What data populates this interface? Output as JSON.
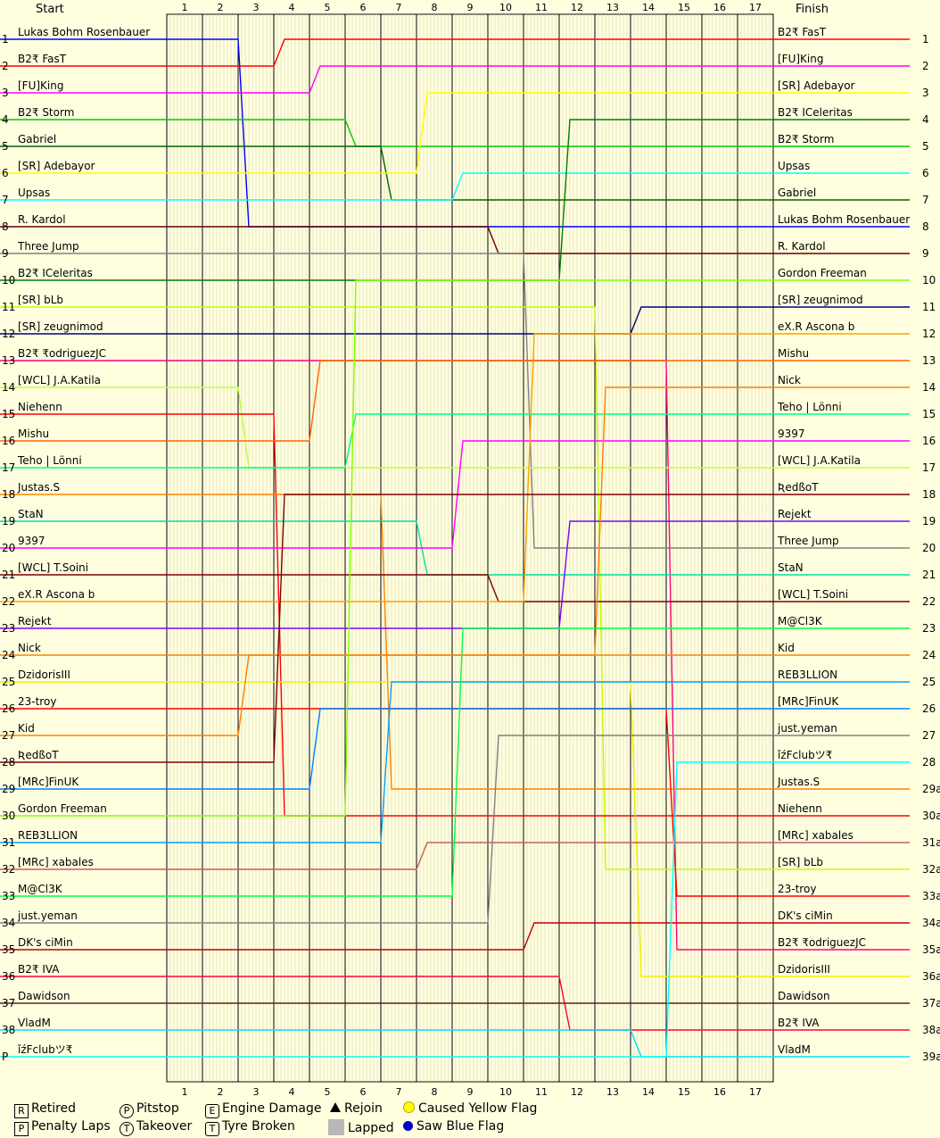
{
  "chart_data": {
    "type": "line",
    "x_label_left": "Start",
    "x_label_right": "Finish",
    "laps": [
      "1",
      "2",
      "3",
      "4",
      "5",
      "6",
      "7",
      "8",
      "9",
      "10",
      "11",
      "12",
      "13",
      "14",
      "15",
      "16",
      "17"
    ],
    "row_labels_left": [
      "1",
      "2",
      "3",
      "4",
      "5",
      "6",
      "7",
      "8",
      "9",
      "10",
      "11",
      "12",
      "13",
      "14",
      "15",
      "16",
      "17",
      "18",
      "19",
      "20",
      "21",
      "22",
      "23",
      "24",
      "25",
      "26",
      "27",
      "28",
      "29",
      "30",
      "31",
      "32",
      "33",
      "34",
      "35",
      "36",
      "37",
      "38",
      "P"
    ],
    "row_labels_right": [
      "1",
      "2",
      "3",
      "4",
      "5",
      "6",
      "7",
      "8",
      "9",
      "10",
      "11",
      "12",
      "13",
      "14",
      "15",
      "16",
      "17",
      "18",
      "19",
      "20",
      "21",
      "22",
      "23",
      "24",
      "25",
      "26",
      "27",
      "28",
      "29a",
      "30a",
      "31a",
      "32a",
      "33a",
      "34a",
      "35a",
      "36a",
      "37a",
      "38a",
      "39a"
    ],
    "start_names": [
      "Lukas Bohm Rosenbauer",
      "B2₹ FasT",
      "[FU]King",
      "B2₹ Storm",
      "Gabriel",
      "[SR] Adebayor",
      "Upsas",
      "R. Kardol",
      "Three Jump",
      "B2₹ ICeleritas",
      "[SR] bLb",
      "[SR] zeugnimod",
      "B2₹ ₹odriguezJC",
      "[WCL] J.A.Katila",
      "Niehenn",
      "Mishu",
      "Teho | Lönni",
      "Justas.S",
      "StaN",
      "9397",
      "[WCL] T.Soini",
      "eX.R Ascona b",
      "Rejekt",
      "Nick",
      "DzidorisIII",
      "23-troy",
      "Kid",
      "ƦedßoT",
      "[MRc]FinUK",
      "Gordon Freeman",
      "REB3LLION",
      "[MRc] xabales",
      "M@Cl3K",
      "just.yeman",
      "DK's ciMin",
      "B2₹ IVA",
      "Dawidson",
      "VladM",
      "ǐźFclubツ₹"
    ],
    "finish_names": [
      "B2₹ FasT",
      "[FU]King",
      "[SR] Adebayor",
      "B2₹ ICeleritas",
      "B2₹ Storm",
      "Upsas",
      "Gabriel",
      "Lukas Bohm Rosenbauer",
      "R. Kardol",
      "Gordon Freeman",
      "[SR] zeugnimod",
      "eX.R Ascona b",
      "Mishu",
      "Nick",
      "Teho | Lönni",
      "9397",
      "[WCL] J.A.Katila",
      "ƦedßoT",
      "Rejekt",
      "Three Jump",
      "StaN",
      "[WCL] T.Soini",
      "M@Cl3K",
      "Kid",
      "REB3LLION",
      "[MRc]FinUK",
      "just.yeman",
      "ǐźFclubツ₹",
      "Justas.S",
      "Niehenn",
      "[MRc] xabales",
      "[SR] bLb",
      "23-troy",
      "DK's ciMin",
      "B2₹ ₹odriguezJC",
      "DzidorisIII",
      "Dawidson",
      "B2₹ IVA",
      "VladM"
    ],
    "colors": [
      "#0000ff",
      "#ff0000",
      "#ff00ff",
      "#00cc00",
      "#006600",
      "#ffff00",
      "#00ffff",
      "#660000",
      "#808080",
      "#008000",
      "#c0ff00",
      "#000080",
      "#ff0080",
      "#c0ff40",
      "#ff0000",
      "#ff6600",
      "#00ff80",
      "#ff8000",
      "#00e0a0",
      "#ff00ff",
      "#800000",
      "#ffa000",
      "#8000ff",
      "#ff8000",
      "#f0f000",
      "#ff0000",
      "#ff8000",
      "#800000",
      "#0080ff",
      "#80ff00",
      "#00a0ff",
      "#c06060",
      "#00ff40",
      "#808080",
      "#c00000",
      "#ff0040",
      "#602020",
      "#00e0ff",
      "#00ffff"
    ]
  },
  "legend": {
    "retired": {
      "glyph": "R",
      "label": "Retired"
    },
    "penalty": {
      "glyph": "P",
      "label": "Penalty Laps"
    },
    "pitstop": {
      "glyph": "P",
      "label": "Pitstop"
    },
    "takeover": {
      "glyph": "T",
      "label": "Takeover"
    },
    "engine": {
      "glyph": "E",
      "label": "Engine Damage"
    },
    "tyre": {
      "glyph": "T",
      "label": "Tyre Broken"
    },
    "rejoin": {
      "label": "Rejoin"
    },
    "lapped": {
      "label": "Lapped"
    },
    "yellow": {
      "label": "Caused Yellow Flag",
      "color": "#ffff00"
    },
    "blue": {
      "label": "Saw Blue Flag",
      "color": "#0000cc"
    }
  }
}
